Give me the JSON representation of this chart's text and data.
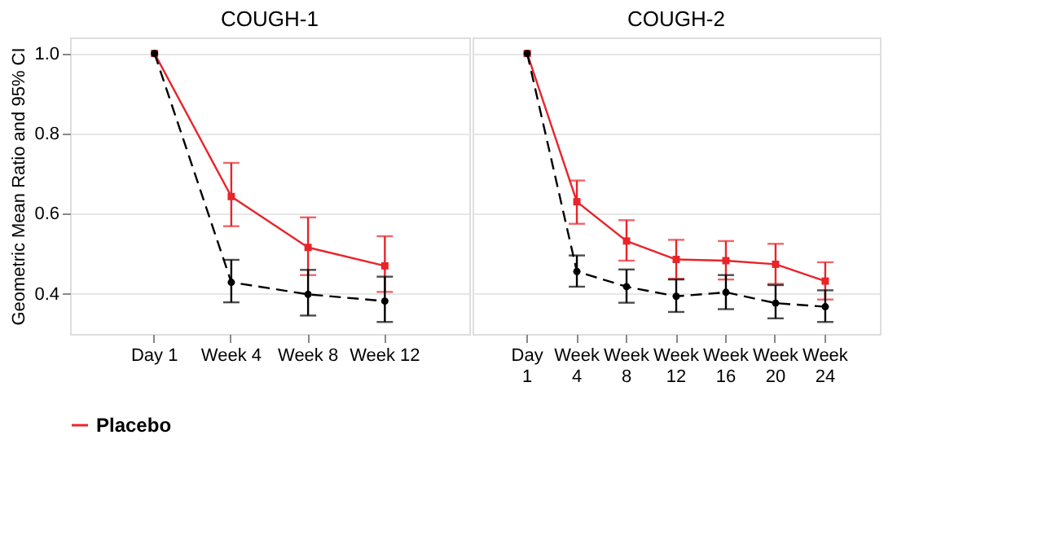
{
  "chart_data": [
    {
      "type": "line",
      "title": "COUGH-1",
      "ylabel": "Geometric Mean Ratio and 95% CI",
      "categories": [
        "Day 1",
        "Week 4",
        "Week 8",
        "Week 12"
      ],
      "ylim": [
        0.3,
        1.04
      ],
      "yticks": [
        0.4,
        0.6,
        0.8,
        {
          "value": 1.0,
          "label": "1.0"
        }
      ],
      "grid": "y",
      "legend": "bottom",
      "series": [
        {
          "name": "Placebo",
          "color": "#e8242a",
          "marker": "square",
          "line_style": "solid",
          "values": [
            1.0,
            0.643,
            0.516,
            0.47
          ],
          "errors": [
            null,
            [
              0.569,
              0.727
            ],
            [
              0.447,
              0.591
            ],
            [
              0.405,
              0.544
            ]
          ]
        },
        {
          "color": "#000000",
          "marker": "circle",
          "line_style": "dashed",
          "values": [
            1.0,
            0.429,
            0.399,
            0.382
          ],
          "errors": [
            null,
            [
              0.379,
              0.485
            ],
            [
              0.346,
              0.46
            ],
            [
              0.33,
              0.443
            ]
          ]
        }
      ]
    },
    {
      "type": "line",
      "title": "COUGH-2",
      "categories": [
        "Day 1",
        "Week 4",
        "Week 8",
        "Week 12",
        "Week 16",
        "Week 20",
        "Week 24"
      ],
      "ylim": [
        0.3,
        1.04
      ],
      "yticks": [
        0.4,
        0.6,
        0.8,
        1.0
      ],
      "grid": "y",
      "legend": "bottom",
      "tick_labels": "x",
      "series": [
        {
          "name": "Placebo",
          "color": "#e8242a",
          "marker": "square",
          "line_style": "solid",
          "values": [
            1.0,
            0.63,
            0.532,
            0.486,
            0.483,
            0.474,
            0.432
          ],
          "errors": [
            null,
            [
              0.575,
              0.683
            ],
            [
              0.483,
              0.584
            ],
            [
              0.438,
              0.535
            ],
            [
              0.436,
              0.532
            ],
            [
              0.425,
              0.525
            ],
            [
              0.386,
              0.479
            ]
          ]
        },
        {
          "color": "#000000",
          "marker": "circle",
          "line_style": "dashed",
          "values": [
            1.0,
            0.456,
            0.418,
            0.394,
            0.404,
            0.377,
            0.368
          ],
          "errors": [
            null,
            [
              0.418,
              0.496
            ],
            [
              0.378,
              0.461
            ],
            [
              0.355,
              0.436
            ],
            [
              0.362,
              0.447
            ],
            [
              0.339,
              0.422
            ],
            [
              0.33,
              0.409
            ]
          ]
        }
      ]
    }
  ]
}
